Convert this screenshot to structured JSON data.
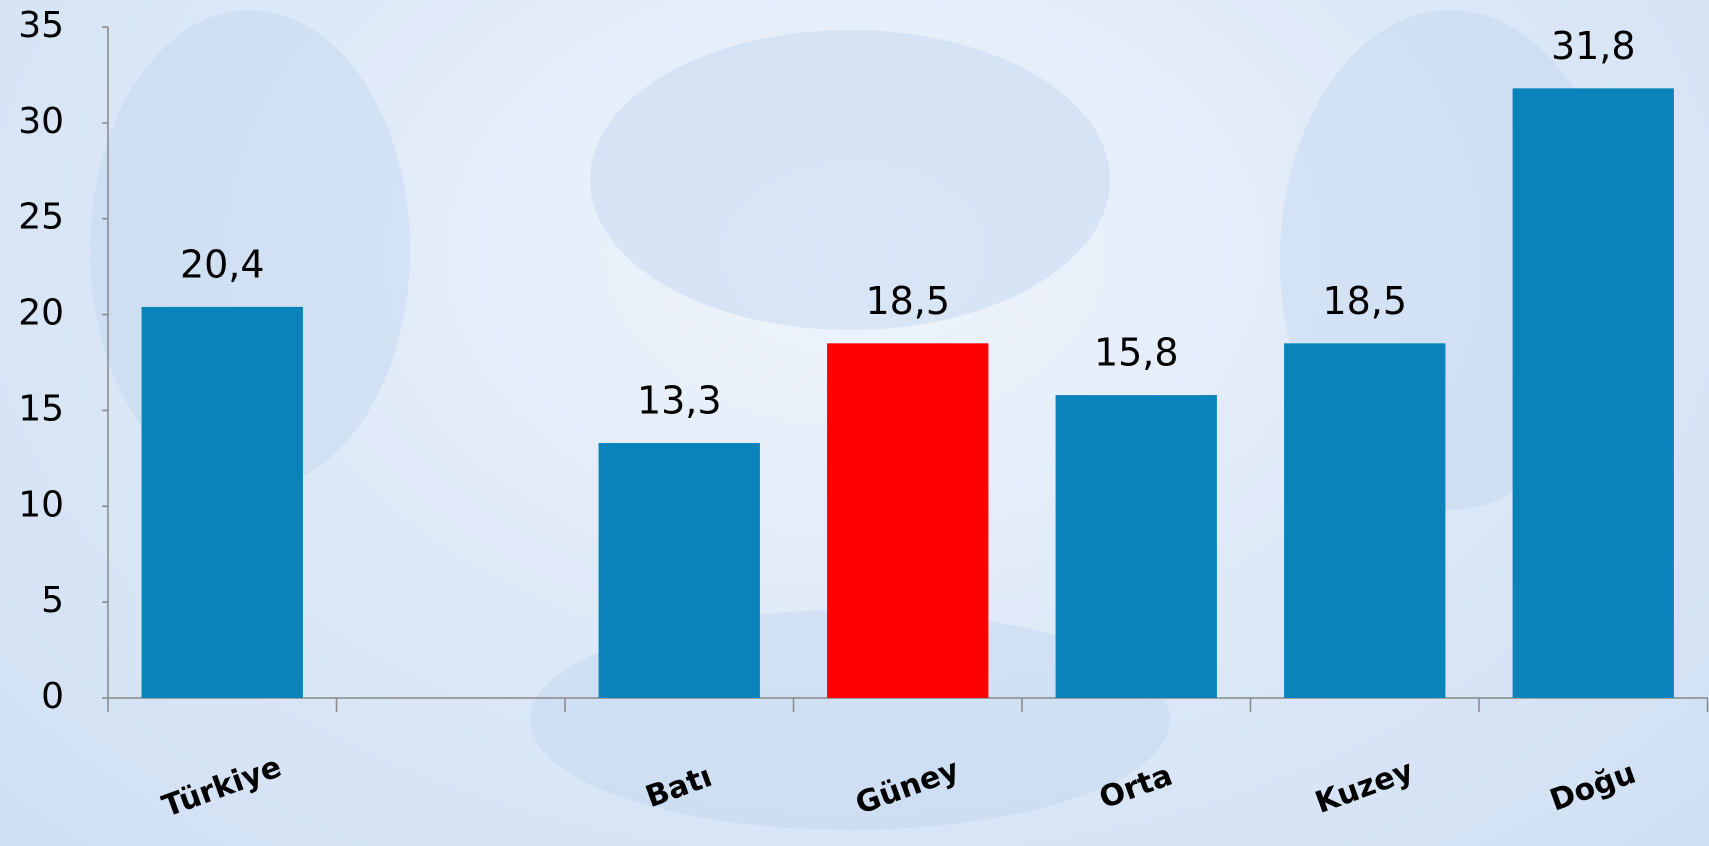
{
  "chart_data": {
    "type": "bar",
    "categories": [
      "Türkiye",
      null,
      "Batı",
      "Güney",
      "Orta",
      "Kuzey",
      "Doğu"
    ],
    "values": [
      20.4,
      null,
      13.3,
      18.5,
      15.8,
      18.5,
      31.8
    ],
    "value_labels": [
      "20,4",
      null,
      "13,3",
      "18,5",
      "15,8",
      "18,5",
      "31,8"
    ],
    "colors": [
      "#0a83bb",
      null,
      "#0a83bb",
      "#ff0000",
      "#0a83bb",
      "#0a83bb",
      "#0a83bb"
    ],
    "ylim": [
      0,
      35
    ],
    "yticks": [
      0,
      5,
      10,
      15,
      20,
      25,
      30,
      35
    ],
    "grid": false
  }
}
